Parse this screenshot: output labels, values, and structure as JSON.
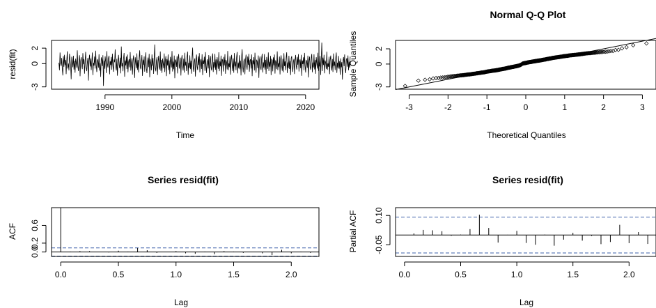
{
  "chart_data": [
    {
      "id": "resid-ts",
      "type": "line",
      "title": "",
      "xlabel": "Time",
      "ylabel": "resid(fit)",
      "xlim": [
        1982,
        2022
      ],
      "ylim": [
        -3.3,
        3.0
      ],
      "xticks": [
        "1990",
        "2000",
        "2010",
        "2020"
      ],
      "xtick_values": [
        1990,
        2000,
        2010,
        2020
      ],
      "yticks": [
        "-3",
        "0",
        "2"
      ],
      "ytick_values": [
        -3,
        0,
        2
      ],
      "x_start": 1983.1,
      "x_step": 0.08333,
      "values": [
        0.12,
        -0.85,
        1.43,
        0.07,
        -0.29,
        0.73,
        -0.59,
        -1.52,
        0.97,
        -0.41,
        1.14,
        -0.21,
        0.47,
        -1.36,
        0.28,
        1.59,
        -0.63,
        0.02,
        -0.88,
        1.27,
        0.55,
        -0.12,
        -2.01,
        0.89,
        0.21,
        -0.47,
        1.02,
        -0.76,
        0.38,
        -1.17,
        0.64,
        0.16,
        -0.53,
        1.71,
        -0.34,
        -0.94,
        0.45,
        1.08,
        -1.63,
        0.31,
        0.83,
        -0.22,
        -0.71,
        1.35,
        -0.08,
        0.59,
        -1.29,
        0.26,
        1.52,
        -0.44,
        -0.97,
        0.13,
        0.74,
        -2.18,
        0.49,
        1.15,
        -0.37,
        0.67,
        -0.83,
        0.22,
        1.43,
        -1.48,
        0.11,
        -0.26,
        0.92,
        -0.64,
        1.67,
        -0.15,
        -1.09,
        0.58,
        0.34,
        -0.52,
        1.21,
        -0.91,
        0.06,
        -1.72,
        0.81,
        0.43,
        -0.31,
        1.09,
        -2.87,
        0.39,
        -0.66,
        0.95,
        0.25,
        -1.21,
        1.61,
        -0.02,
        -0.49,
        0.71,
        1.02,
        -1.37,
        0.33,
        -0.18,
        0.86,
        -0.79,
        1.29,
        -0.27,
        -1.06,
        0.53,
        0.18,
        1.84,
        -0.41,
        -0.88,
        0.62,
        -1.55,
        0.29,
        1.13,
        -0.14,
        -0.59,
        0.77,
        -1.26,
        2.21,
        -0.36,
        0.09,
        -0.98,
        0.66,
        1.38,
        -1.69,
        0.41,
        -0.23,
        0.91,
        -0.69,
        1.17,
        -1.11,
        0.21,
        0.57,
        -0.47,
        1.49,
        -0.91,
        -0.07,
        0.69,
        -1.41,
        0.37,
        1.06,
        -0.33,
        -1.84,
        0.82,
        0.14,
        -0.58,
        1.33,
        -0.81,
        0.46,
        -1.14,
        0.74,
        1.71,
        -0.39,
        -0.73,
        0.27,
        1.11,
        -1.58,
        0.51,
        -0.17,
        0.93,
        -1.03,
        0.36,
        1.46,
        -0.62,
        -1.23,
        0.19,
        0.79,
        -0.45,
        1.26,
        -1.77,
        0.61,
        0.03,
        -0.86,
        1.19,
        -0.28,
        0.72,
        -1.32,
        0.44,
        2.47,
        -0.56,
        -0.99,
        0.31,
        0.85,
        -1.46,
        0.23,
        1.02,
        -0.38,
        -0.76,
        1.57,
        -0.92,
        0.48,
        -1.19,
        0.66,
        0.09,
        -0.61,
        1.31,
        -1.08,
        0.35,
        0.97,
        -1.61,
        0.58,
        -0.24,
        1.18,
        -0.83,
        0.41,
        -1.36,
        0.88,
        0.17,
        -0.49,
        1.62,
        -1.01,
        0.26,
        -0.72,
        1.04,
        -1.89,
        0.53,
        0.34,
        -0.41,
        0.95,
        -1.27,
        0.67,
        1.24,
        -0.64,
        -0.11,
        0.78,
        -1.53,
        0.49,
        1.09,
        -0.33,
        -0.89,
        0.63,
        -1.16,
        1.41,
        -0.26,
        0.24,
        -0.96,
        0.86,
        1.55,
        -1.44,
        0.12,
        -0.57,
        1.07,
        -0.71,
        0.39,
        -1.29,
        0.81,
        2.06,
        -0.47,
        -1.05,
        0.28,
        0.68,
        -1.66,
        0.45,
        1.17,
        -0.37,
        -0.82,
        0.94,
        -0.19,
        1.36,
        -1.12,
        0.31,
        0.59,
        -0.69,
        1.21,
        -1.48,
        0.43,
        -0.05,
        0.89,
        -0.93,
        1.49,
        -0.31,
        -1.21,
        0.56,
        0.22,
        -0.62,
        1.11,
        -1.74,
        0.37,
        0.98,
        -0.44,
        -0.87,
        0.73,
        1.32,
        -1.09,
        0.19,
        -0.51,
        1.26,
        -0.79,
        0.54,
        -1.39,
        0.83,
        0.11,
        -0.66,
        1.47,
        -0.97,
        0.29,
        -0.35,
        1.03,
        -1.57,
        0.61,
        0.42,
        -1.01,
        0.87,
        -0.23,
        1.22,
        -1.31,
        0.47,
        0.16,
        -0.74,
        1.64,
        -0.86,
        0.05,
        -0.46,
        0.96,
        -1.42,
        0.52,
        1.13,
        -0.28,
        -0.95,
        0.67,
        -1.18,
        1.37,
        -0.36,
        0.26,
        -0.84,
        0.79,
        1.51,
        -1.26,
        0.14,
        -0.61,
        1.08,
        -0.73,
        0.38,
        -1.52,
        0.75,
        1.86,
        -0.41,
        -1.12,
        0.33,
        0.64,
        -1.37,
        0.48,
        1.16,
        -0.29,
        -0.78,
        0.91,
        -0.16,
        1.27,
        -1.04,
        0.36,
        0.57,
        -0.63,
        1.19,
        -1.61,
        0.44,
        -0.09,
        0.84,
        -0.88,
        1.42,
        -0.26,
        -1.17,
        0.51,
        0.27,
        -0.57,
        1.06,
        -1.83,
        0.39,
        0.93,
        -0.47,
        -0.81,
        0.71,
        1.28,
        -1.14,
        0.17,
        -0.53,
        1.23,
        -0.77,
        0.49,
        -1.33,
        0.86,
        0.13,
        -0.67,
        1.44,
        -0.95,
        0.24,
        -0.39,
        1.01,
        -1.49,
        0.58,
        0.46,
        -0.99,
        0.81,
        -0.21,
        1.18,
        -1.28,
        0.43,
        0.12,
        -0.71,
        1.58,
        -0.83,
        0.07,
        -0.44,
        0.92,
        -1.39,
        0.55,
        1.07,
        -0.31,
        -0.92,
        0.62,
        -1.11,
        1.34,
        -0.33,
        0.29,
        -0.86,
        0.77,
        1.46,
        -1.22,
        0.16,
        -0.58,
        1.02,
        -0.69,
        0.35,
        -1.47,
        0.71,
        0.97,
        -0.38,
        -1.07,
        0.3,
        0.61,
        -1.34,
        0.45,
        1.12,
        -0.25,
        -0.75,
        0.87,
        -0.13,
        1.23,
        -1.01,
        0.33,
        0.54,
        -0.6,
        1.15,
        -1.57,
        0.41,
        -0.06,
        0.81,
        -0.85,
        1.39,
        -0.23,
        -1.14,
        0.48,
        0.24,
        -0.54,
        1.03,
        -1.78,
        0.36,
        0.9,
        -0.45,
        -0.79,
        0.69,
        1.25,
        -1.11,
        0.15,
        -0.5,
        1.2,
        -0.74,
        0.46,
        -1.3,
        0.83,
        0.1,
        -0.64,
        1.41,
        -0.92,
        0.21,
        -0.36,
        0.98,
        -1.46,
        0.55,
        2.71,
        -0.96,
        0.78,
        -0.18,
        1.15,
        -1.25,
        0.4,
        0.09,
        -0.68,
        1.55,
        -0.8,
        0.04,
        -0.41,
        0.89,
        -1.36,
        0.52,
        1.04,
        -0.28,
        -0.89,
        0.59,
        -1.08,
        1.31,
        -0.3,
        0.26,
        -0.83,
        0.74,
        1.43,
        -1.19,
        0.13,
        -0.55,
        0.99,
        -0.66,
        0.32,
        -1.44,
        0.68,
        -0.47,
        0.21,
        -2.06,
        0.37,
        0.85,
        -0.33,
        1.18,
        -0.64,
        -1.21,
        0.44,
        0.72,
        -0.39,
        1.05,
        -0.86,
        0.25,
        -0.51,
        0.91
      ]
    },
    {
      "id": "qq-plot",
      "type": "scatter",
      "title": "Normal Q-Q Plot",
      "xlabel": "Theoretical Quantiles",
      "ylabel": "Sample Quantiles",
      "xlim": [
        -3.35,
        3.35
      ],
      "ylim": [
        -3.3,
        3.1
      ],
      "xticks": [
        "-3",
        "-2",
        "-1",
        "0",
        "1",
        "2",
        "3"
      ],
      "xtick_values": [
        -3,
        -2,
        -1,
        0,
        1,
        2,
        3
      ],
      "yticks": [
        "-3",
        "0",
        "2"
      ],
      "ytick_values": [
        -3,
        0,
        2
      ],
      "n_points": 450,
      "reference_line": {
        "intercept": 0.0,
        "slope": 1.0
      }
    },
    {
      "id": "acf",
      "type": "bar",
      "title": "Series  resid(fit)",
      "xlabel": "Lag",
      "ylabel": "ACF",
      "xlim": [
        -0.08,
        2.24
      ],
      "ylim": [
        -0.1,
        1.0
      ],
      "xticks": [
        "0.0",
        "0.5",
        "1.0",
        "1.5",
        "2.0"
      ],
      "xtick_values": [
        0.0,
        0.5,
        1.0,
        1.5,
        2.0
      ],
      "yticks": [
        "0.0",
        "0.2",
        "0.6"
      ],
      "ytick_values": [
        0.0,
        0.2,
        0.6
      ],
      "lags": [
        0.0,
        0.0833,
        0.1667,
        0.25,
        0.3333,
        0.4167,
        0.5,
        0.5833,
        0.6667,
        0.75,
        0.8333,
        0.9167,
        1.0,
        1.0833,
        1.1667,
        1.25,
        1.3333,
        1.4167,
        1.5,
        1.5833,
        1.6667,
        1.75,
        1.8333,
        1.9167,
        2.0,
        2.0833,
        2.1667
      ],
      "values": [
        1.0,
        0.01,
        0.02,
        0.02,
        0.0,
        -0.01,
        0.03,
        0.01,
        0.09,
        0.04,
        -0.02,
        0.0,
        0.02,
        -0.03,
        -0.04,
        0.01,
        -0.05,
        0.02,
        0.01,
        -0.02,
        0.0,
        -0.03,
        -0.07,
        0.05,
        -0.03,
        0.01,
        -0.02
      ],
      "ci": 0.092
    },
    {
      "id": "pacf",
      "type": "bar",
      "title": "Series  resid(fit)",
      "xlabel": "Lag",
      "ylabel": "Partial ACF",
      "xlim": [
        -0.08,
        2.24
      ],
      "ylim": [
        -0.11,
        0.14
      ],
      "xticks": [
        "0.0",
        "0.5",
        "1.0",
        "1.5",
        "2.0"
      ],
      "xtick_values": [
        0.0,
        0.5,
        1.0,
        1.5,
        2.0
      ],
      "yticks": [
        "-0.05",
        "0.10"
      ],
      "ytick_values": [
        -0.05,
        0.1
      ],
      "lags": [
        0.0833,
        0.1667,
        0.25,
        0.3333,
        0.4167,
        0.5,
        0.5833,
        0.6667,
        0.75,
        0.8333,
        0.9167,
        1.0,
        1.0833,
        1.1667,
        1.25,
        1.3333,
        1.4167,
        1.5,
        1.5833,
        1.6667,
        1.75,
        1.8333,
        1.9167,
        2.0,
        2.0833,
        2.1667
      ],
      "values": [
        0.008,
        0.026,
        0.024,
        0.019,
        -0.004,
        0.002,
        0.03,
        0.104,
        0.036,
        -0.039,
        0.001,
        0.021,
        -0.041,
        -0.05,
        0.002,
        -0.055,
        -0.024,
        0.011,
        -0.029,
        -0.005,
        -0.047,
        -0.036,
        0.052,
        -0.042,
        0.015,
        -0.046
      ],
      "ci": 0.092
    }
  ]
}
